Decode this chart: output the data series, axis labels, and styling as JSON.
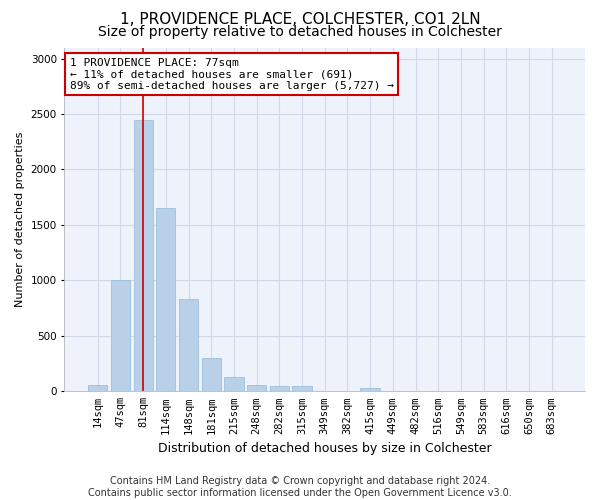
{
  "title": "1, PROVIDENCE PLACE, COLCHESTER, CO1 2LN",
  "subtitle": "Size of property relative to detached houses in Colchester",
  "xlabel": "Distribution of detached houses by size in Colchester",
  "ylabel": "Number of detached properties",
  "categories": [
    "14sqm",
    "47sqm",
    "81sqm",
    "114sqm",
    "148sqm",
    "181sqm",
    "215sqm",
    "248sqm",
    "282sqm",
    "315sqm",
    "349sqm",
    "382sqm",
    "415sqm",
    "449sqm",
    "482sqm",
    "516sqm",
    "549sqm",
    "583sqm",
    "616sqm",
    "650sqm",
    "683sqm"
  ],
  "values": [
    60,
    1000,
    2450,
    1650,
    830,
    300,
    130,
    55,
    50,
    50,
    0,
    0,
    30,
    0,
    0,
    0,
    0,
    0,
    0,
    0,
    0
  ],
  "bar_color": "#b8d0e8",
  "bar_edgecolor": "#90b8d8",
  "vline_x_index": 2,
  "vline_color": "#cc0000",
  "annotation_line1": "1 PROVIDENCE PLACE: 77sqm",
  "annotation_line2": "← 11% of detached houses are smaller (691)",
  "annotation_line3": "89% of semi-detached houses are larger (5,727) →",
  "annotation_box_color": "#cc0000",
  "ylim": [
    0,
    3100
  ],
  "yticks": [
    0,
    500,
    1000,
    1500,
    2000,
    2500,
    3000
  ],
  "grid_color": "#d0d8e8",
  "bg_color": "#eef2fa",
  "footer_line1": "Contains HM Land Registry data © Crown copyright and database right 2024.",
  "footer_line2": "Contains public sector information licensed under the Open Government Licence v3.0.",
  "title_fontsize": 11,
  "subtitle_fontsize": 10,
  "xlabel_fontsize": 9,
  "ylabel_fontsize": 8,
  "tick_fontsize": 7.5,
  "footer_fontsize": 7,
  "ann_fontsize": 8
}
